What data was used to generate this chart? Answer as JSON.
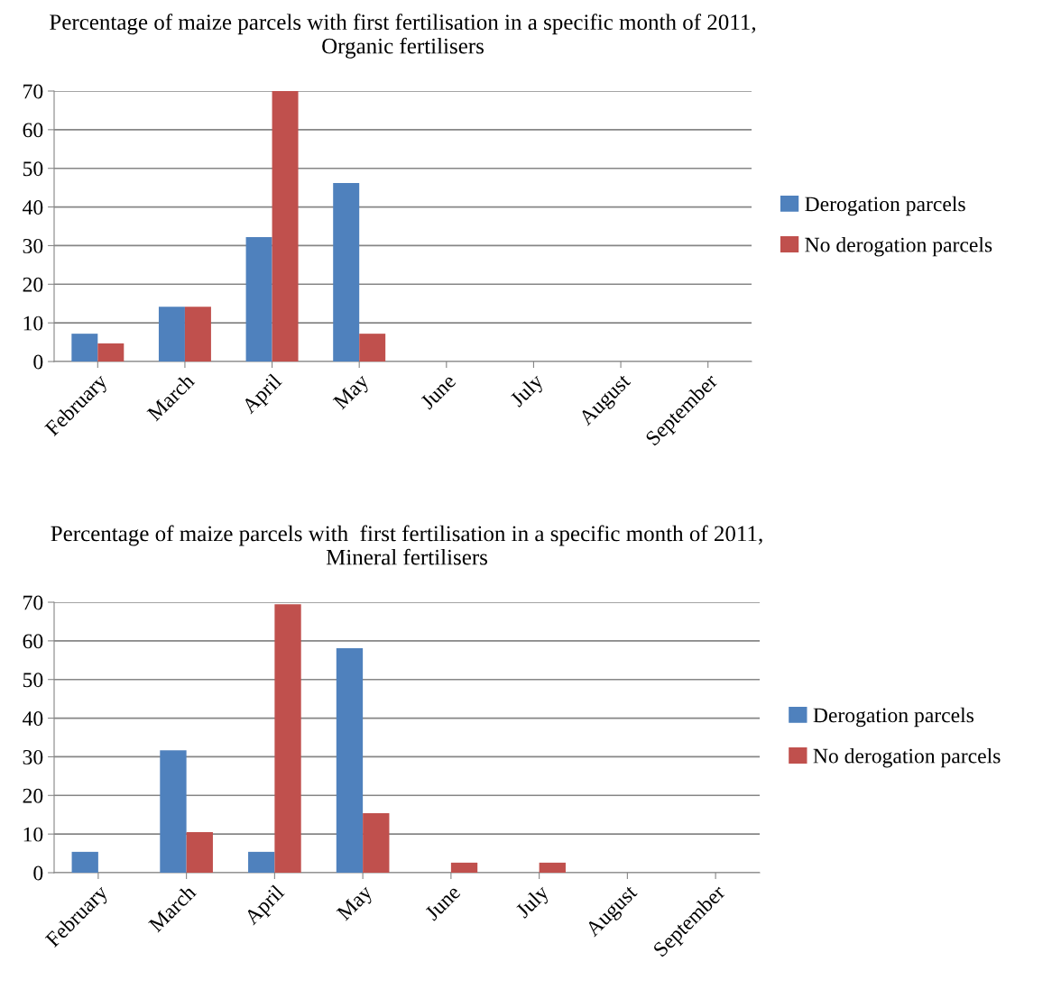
{
  "chart_data": [
    {
      "type": "bar",
      "title": "Percentage of maize parcels with first fertilisation in a specific month of 2011,\nOrganic fertilisers",
      "categories": [
        "February",
        "March",
        "April",
        "May",
        "June",
        "July",
        "August",
        "September"
      ],
      "series": [
        {
          "name": "Derogation parcels",
          "color": "#4f81bd",
          "values": [
            7.2,
            14.2,
            32.2,
            46.2,
            0,
            0,
            0,
            0
          ]
        },
        {
          "name": "No derogation parcels",
          "color": "#c0504d",
          "values": [
            4.7,
            14.2,
            70,
            7.2,
            0,
            0,
            0,
            0
          ]
        }
      ],
      "ylim": [
        0,
        70
      ],
      "yticks": [
        0,
        10,
        20,
        30,
        40,
        50,
        60,
        70
      ],
      "grid": "y",
      "legend": "right"
    },
    {
      "type": "bar",
      "title": "Percentage of maize parcels with  first fertilisation in a specific month of 2011,\nMineral fertilisers",
      "categories": [
        "February",
        "March",
        "April",
        "May",
        "June",
        "July",
        "August",
        "September"
      ],
      "series": [
        {
          "name": "Derogation parcels",
          "color": "#4f81bd",
          "values": [
            5.4,
            31.7,
            5.4,
            58.1,
            0,
            0,
            0,
            0
          ]
        },
        {
          "name": "No derogation parcels",
          "color": "#c0504d",
          "values": [
            0,
            10.5,
            69.5,
            15.4,
            2.6,
            2.6,
            0,
            0
          ]
        }
      ],
      "ylim": [
        0,
        70
      ],
      "yticks": [
        0,
        10,
        20,
        30,
        40,
        50,
        60,
        70
      ],
      "grid": "y",
      "legend": "right"
    }
  ]
}
